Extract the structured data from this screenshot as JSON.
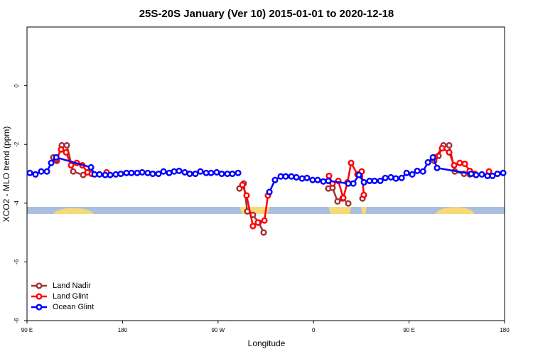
{
  "chart_data": {
    "type": "line",
    "title": "25S-20S January (Ver 10)   2015-01-01 to 2020-12-18",
    "x_label": "Longitude",
    "y_label": "XCO2 - MLO trend (ppm)",
    "xlim": [
      90,
      540
    ],
    "xticks": [
      {
        "value": 90,
        "label": "90 E"
      },
      180,
      {
        "value": 270,
        "label": "90 W"
      },
      {
        "value": 360,
        "label": "0"
      },
      {
        "value": 450,
        "label": "90 E"
      },
      {
        "value": 540,
        "label": "180"
      }
    ],
    "ylim": [
      -8,
      2
    ],
    "yticks": [
      0,
      -2,
      -4,
      -6,
      -8
    ],
    "legend": "bottomleft",
    "series": [
      {
        "name": "Land Nadir",
        "color": "#a23236",
        "x": [
          114.8,
          118.1,
          122.8,
          127.5,
          133.5,
          142.9,
          null,
          290.2,
          294.2,
          297.6,
          302.9,
          308.3,
          313.0,
          null,
          373.9,
          377.9,
          382.6,
          387.3,
          392.7,
          null,
          406.1,
          null,
          473.7,
          477.7,
          482.4,
          487.8,
          493.1,
          501.8,
          507.2
        ],
        "values": [
          -2.44,
          -2.56,
          -2.03,
          -2.03,
          -2.92,
          -3.04,
          null,
          -3.5,
          -3.33,
          -4.28,
          -4.4,
          -4.66,
          -5.0,
          null,
          -3.5,
          -3.48,
          -3.94,
          -3.84,
          -4.01,
          null,
          -3.84,
          null,
          -2.56,
          -2.39,
          -2.03,
          -2.03,
          -2.92,
          -3.0,
          -3.02
        ]
      },
      {
        "name": "Land Glint",
        "color": "#ff0000",
        "x": [
          117.5,
          122.1,
          126.8,
          131.5,
          136.9,
          142.2,
          146.9,
          150.9,
          null,
          165.0,
          null,
          292.9,
          296.9,
          302.9,
          307.6,
          313.7,
          317.0,
          null,
          374.6,
          377.9,
          383.3,
          388.0,
          392.0,
          395.4,
          401.4,
          405.4,
          407.4,
          null,
          474.4,
          481.1,
          487.8,
          492.5,
          497.8,
          502.6,
          507.2,
          511.9,
          null,
          525.3
        ],
        "values": [
          -2.51,
          -2.17,
          -2.27,
          -2.71,
          -2.63,
          -2.71,
          -2.95,
          -3.0,
          null,
          -2.95,
          null,
          -3.38,
          -3.74,
          -4.78,
          -4.66,
          -4.59,
          -3.74,
          null,
          -3.07,
          -3.33,
          -3.24,
          -3.82,
          -3.29,
          -2.63,
          -3.02,
          -2.92,
          -3.72,
          null,
          -2.44,
          -2.13,
          -2.27,
          -2.71,
          -2.63,
          -2.66,
          -2.9,
          -3.0,
          null,
          -2.92
        ]
      },
      {
        "name": "Ocean Glint",
        "color": "#0000ff",
        "x": [
          92.7,
          98.0,
          103.4,
          108.8,
          112.8,
          117.5,
          150.3,
          153.6,
          158.3,
          163.7,
          168.4,
          173.7,
          178.4,
          183.7,
          188.4,
          193.8,
          198.5,
          203.8,
          208.5,
          213.9,
          218.6,
          223.9,
          228.6,
          233.3,
          238.7,
          243.4,
          248.7,
          253.4,
          258.8,
          263.4,
          268.8,
          273.5,
          278.8,
          283.5,
          288.9,
          null,
          318.4,
          323.7,
          329.1,
          333.8,
          339.1,
          343.8,
          349.2,
          353.8,
          359.2,
          363.9,
          369.2,
          373.9,
          392.7,
          397.4,
          402.8,
          407.5,
          412.8,
          417.5,
          422.9,
          427.6,
          432.9,
          437.6,
          443.0,
          447.7,
          453.0,
          457.7,
          463.1,
          467.8,
          472.5,
          476.4,
          508.5,
          513.2,
          518.6,
          523.9,
          528.6,
          533.3,
          538.7
        ],
        "values": [
          -2.97,
          -3.02,
          -2.92,
          -2.92,
          -2.63,
          -2.44,
          -2.78,
          -3.02,
          -3.02,
          -3.04,
          -3.04,
          -3.02,
          -3.0,
          -2.97,
          -2.97,
          -2.97,
          -2.95,
          -2.97,
          -3.0,
          -3.0,
          -2.92,
          -2.97,
          -2.92,
          -2.9,
          -2.95,
          -3.0,
          -3.0,
          -2.92,
          -2.97,
          -2.97,
          -2.95,
          -3.0,
          -3.0,
          -3.0,
          -2.97,
          null,
          -3.62,
          -3.21,
          -3.09,
          -3.09,
          -3.09,
          -3.12,
          -3.16,
          -3.14,
          -3.21,
          -3.21,
          -3.26,
          -3.24,
          -3.33,
          -3.33,
          -3.04,
          -3.29,
          -3.24,
          -3.24,
          -3.24,
          -3.14,
          -3.12,
          -3.16,
          -3.14,
          -2.97,
          -3.02,
          -2.9,
          -2.92,
          -2.61,
          -2.44,
          -2.8,
          -3.0,
          -3.04,
          -3.02,
          -3.07,
          -3.07,
          -3.0,
          -2.97
        ]
      }
    ]
  }
}
